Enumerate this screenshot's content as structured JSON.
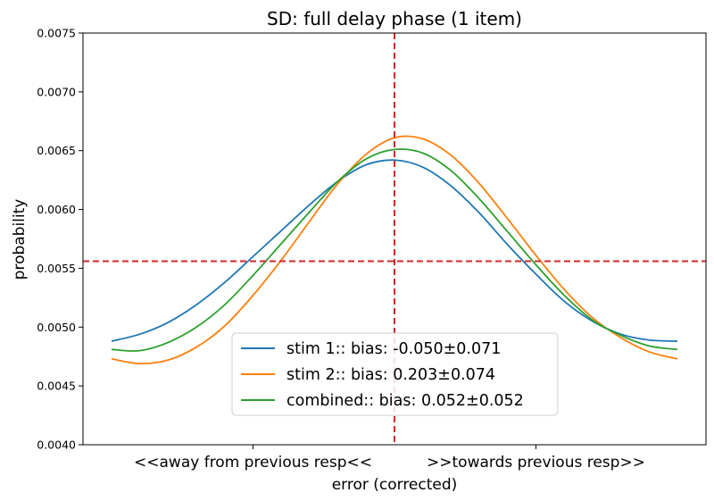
{
  "chart_data": {
    "type": "line",
    "title": "SD: full delay phase (1 item)",
    "xlabel": "error (corrected)",
    "ylabel": "probability",
    "xlim": [
      -1.0,
      1.0
    ],
    "ylim": [
      0.004,
      0.0075
    ],
    "yticks": [
      0.004,
      0.0045,
      0.005,
      0.0055,
      0.006,
      0.0065,
      0.007,
      0.0075
    ],
    "ytick_labels": [
      "0.0040",
      "0.0045",
      "0.0050",
      "0.0055",
      "0.0060",
      "0.0065",
      "0.0070",
      "0.0075"
    ],
    "xticks": [
      -0.5,
      0.5
    ],
    "xtick_labels": [
      "<<away from previous resp<<",
      ">>towards previous resp>>"
    ],
    "reference_lines": {
      "vertical_x": 0.0,
      "horizontal_y": 0.00556,
      "color": "#d62728"
    },
    "legend_position": "lower-center",
    "grid": false,
    "series": [
      {
        "name": "stim 1:: bias: -0.050±0.071",
        "color": "#1f77b4",
        "x": [
          -1.0,
          -0.9,
          -0.8,
          -0.7,
          -0.6,
          -0.5,
          -0.4,
          -0.3,
          -0.2,
          -0.1,
          0.0,
          0.1,
          0.2,
          0.3,
          0.4,
          0.5,
          0.6,
          0.7,
          0.8,
          0.9,
          1.0
        ],
        "y": [
          0.00488,
          0.00494,
          0.00504,
          0.00519,
          0.00538,
          0.0056,
          0.00582,
          0.00604,
          0.00624,
          0.00638,
          0.00642,
          0.00636,
          0.0062,
          0.00597,
          0.0057,
          0.00545,
          0.00522,
          0.00505,
          0.00494,
          0.00489,
          0.00488
        ]
      },
      {
        "name": "stim 2:: bias: 0.203±0.074",
        "color": "#ff7f0e",
        "x": [
          -1.0,
          -0.9,
          -0.8,
          -0.7,
          -0.6,
          -0.5,
          -0.4,
          -0.3,
          -0.2,
          -0.1,
          0.0,
          0.1,
          0.2,
          0.3,
          0.4,
          0.5,
          0.6,
          0.7,
          0.8,
          0.9,
          1.0
        ],
        "y": [
          0.00473,
          0.00469,
          0.00472,
          0.00483,
          0.00501,
          0.00527,
          0.00557,
          0.0059,
          0.00622,
          0.00647,
          0.00661,
          0.0066,
          0.00646,
          0.00622,
          0.00592,
          0.00561,
          0.00532,
          0.00508,
          0.00491,
          0.00479,
          0.00473
        ]
      },
      {
        "name": "combined:: bias: 0.052±0.052",
        "color": "#2ca02c",
        "x": [
          -1.0,
          -0.9,
          -0.8,
          -0.7,
          -0.6,
          -0.5,
          -0.4,
          -0.3,
          -0.2,
          -0.1,
          0.0,
          0.1,
          0.2,
          0.3,
          0.4,
          0.5,
          0.6,
          0.7,
          0.8,
          0.9,
          1.0
        ],
        "y": [
          0.00481,
          0.0048,
          0.00487,
          0.005,
          0.00519,
          0.00544,
          0.00571,
          0.00598,
          0.00624,
          0.00643,
          0.00651,
          0.00648,
          0.00633,
          0.00609,
          0.00581,
          0.00553,
          0.00527,
          0.00506,
          0.00493,
          0.00484,
          0.00481
        ]
      }
    ]
  }
}
